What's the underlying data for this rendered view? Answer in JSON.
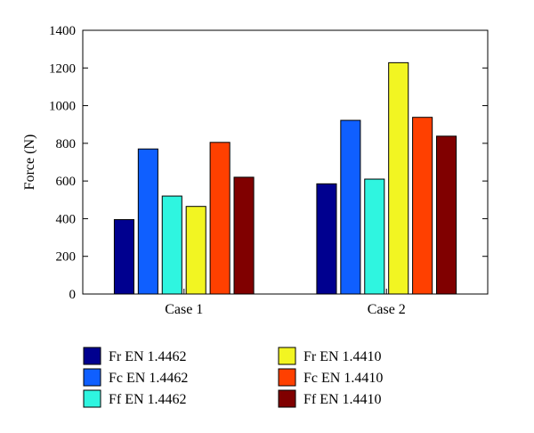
{
  "chart_data": {
    "type": "bar",
    "ylabel": "Force (N)",
    "ylim": [
      0,
      1400
    ],
    "yticks": [
      0,
      200,
      400,
      600,
      800,
      1000,
      1200,
      1400
    ],
    "grid": false,
    "legend_position": "bottom",
    "categories": [
      "Case 1",
      "Case 2"
    ],
    "series": [
      {
        "name": "Fr EN 1.4462",
        "color": "#00008f",
        "values": [
          395,
          585
        ]
      },
      {
        "name": "Fc EN 1.4462",
        "color": "#0f5fff",
        "values": [
          770,
          922
        ]
      },
      {
        "name": "Ff EN 1.4462",
        "color": "#2ff5e0",
        "values": [
          520,
          610
        ]
      },
      {
        "name": "Fr EN 1.4410",
        "color": "#f2f522",
        "values": [
          465,
          1228
        ]
      },
      {
        "name": "Fc EN 1.4410",
        "color": "#ff4000",
        "values": [
          805,
          938
        ]
      },
      {
        "name": "Ff EN 1.4410",
        "color": "#800000",
        "values": [
          620,
          838
        ]
      }
    ]
  }
}
